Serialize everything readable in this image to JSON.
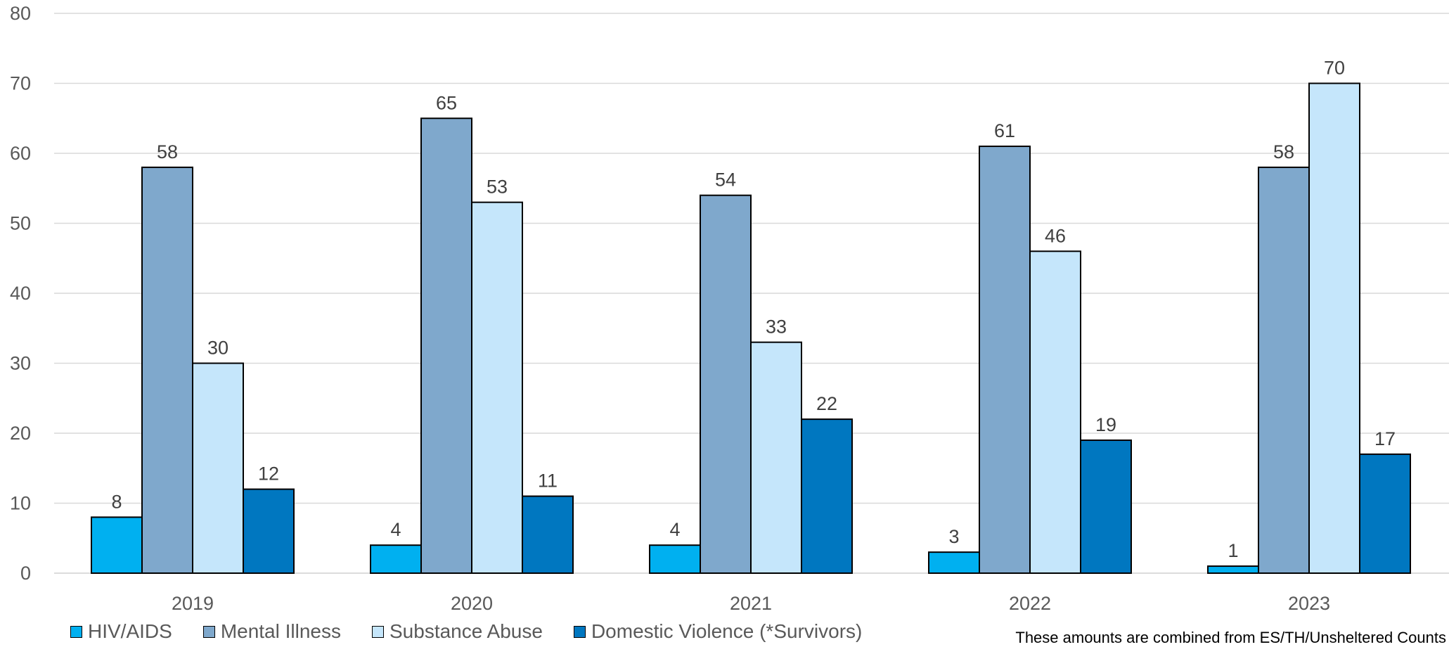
{
  "chart_data": {
    "type": "bar",
    "categories": [
      "2019",
      "2020",
      "2021",
      "2022",
      "2023"
    ],
    "series": [
      {
        "name": "HIV/AIDS",
        "color": "#00b0f0",
        "values": [
          8,
          4,
          4,
          3,
          1
        ]
      },
      {
        "name": "Mental Illness",
        "color": "#7fa8cc",
        "values": [
          58,
          65,
          54,
          61,
          58
        ]
      },
      {
        "name": "Substance Abuse",
        "color": "#c5e6fb",
        "values": [
          30,
          53,
          33,
          46,
          70
        ]
      },
      {
        "name": "Domestic Violence (*Survivors)",
        "color": "#0077c0",
        "values": [
          12,
          11,
          22,
          19,
          17
        ]
      }
    ],
    "ylim": [
      0,
      80
    ],
    "yticks": [
      0,
      10,
      20,
      30,
      40,
      50,
      60,
      70,
      80
    ],
    "grid": true,
    "legend_position": "bottom-left",
    "data_labels": true
  },
  "note": "These amounts are combined from ES/TH/Unsheltered Counts"
}
